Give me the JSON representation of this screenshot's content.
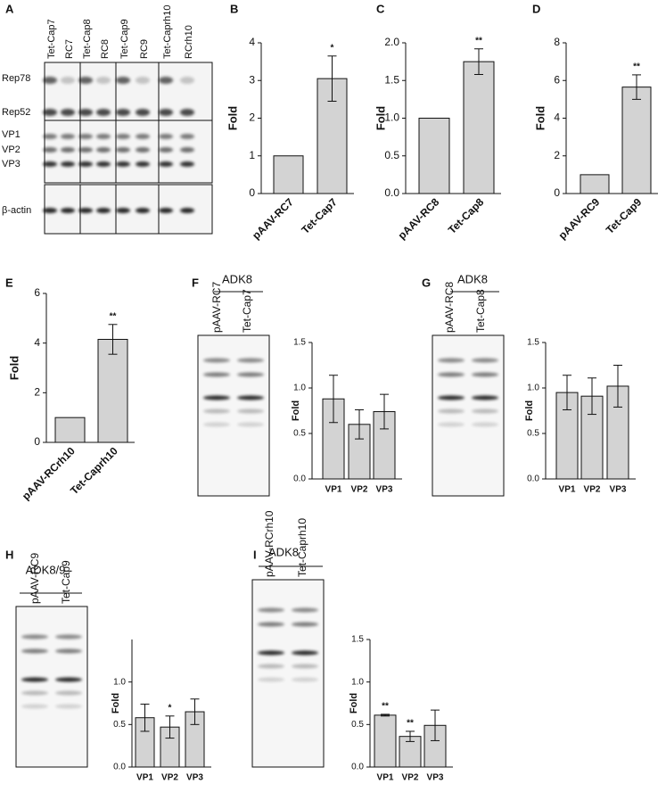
{
  "panel_a": {
    "letter": "A",
    "lanes": [
      "Tet-Cap7",
      "RC7",
      "Tet-Cap8",
      "RC8",
      "Tet-Cap9",
      "RC9",
      "Tet-Caprh10",
      "RCrh10"
    ],
    "rows": [
      "Rep78",
      "Rep52",
      "VP1",
      "VP2",
      "VP3",
      "β-actin"
    ]
  },
  "blots": [
    {
      "letter": "F",
      "header": "ADK8",
      "lanes": [
        "pAAV-RC7",
        "Tet-Cap7"
      ]
    },
    {
      "letter": "G",
      "header": "ADK8",
      "lanes": [
        "pAAV-RC8",
        "Tet-Cap8"
      ]
    },
    {
      "letter": "H",
      "header": "ADK8/9",
      "lanes": [
        "pAAV-RC9",
        "Tet-Cap9"
      ]
    },
    {
      "letter": "I",
      "header": "ADK8",
      "lanes": [
        "pAAV-RCrh10",
        "Tet-Caprh10"
      ]
    }
  ],
  "chart_data": [
    {
      "type": "bar",
      "letter": "B",
      "ylabel": "Fold",
      "categories": [
        "pAAV-RC7",
        "Tet-Cap7"
      ],
      "values": [
        1,
        3.05
      ],
      "errors": [
        null,
        0.6
      ],
      "annotations": [
        null,
        "*"
      ],
      "ylim": [
        0,
        4
      ],
      "yticks": [
        0,
        1,
        2,
        3,
        4
      ]
    },
    {
      "type": "bar",
      "letter": "C",
      "ylabel": "Fold",
      "categories": [
        "pAAV-RC8",
        "Tet-Cap8"
      ],
      "values": [
        1,
        1.75
      ],
      "errors": [
        null,
        0.17
      ],
      "annotations": [
        null,
        "**"
      ],
      "ylim": [
        0,
        2
      ],
      "yticks": [
        {
          "value": 0,
          "label": "0.0"
        },
        0.5,
        {
          "value": 1,
          "label": "1.0"
        },
        1.5,
        {
          "value": 2,
          "label": "2.0"
        }
      ]
    },
    {
      "type": "bar",
      "letter": "D",
      "ylabel": "Fold",
      "categories": [
        "pAAV-RC9",
        "Tet-Cap9"
      ],
      "values": [
        1,
        5.65
      ],
      "errors": [
        null,
        0.65
      ],
      "annotations": [
        null,
        "**"
      ],
      "ylim": [
        0,
        8
      ],
      "yticks": [
        0,
        2,
        4,
        6,
        8
      ]
    },
    {
      "type": "bar",
      "letter": "E",
      "ylabel": "Fold",
      "categories": [
        "pAAV-RCrh10",
        "Tet-Caprh10"
      ],
      "values": [
        1,
        4.15
      ],
      "errors": [
        null,
        0.6
      ],
      "annotations": [
        null,
        "**"
      ],
      "ylim": [
        0,
        6
      ],
      "yticks": [
        0,
        2,
        4,
        6
      ]
    },
    {
      "type": "bar",
      "ylabel": "Fold",
      "categories": [
        "VP1",
        "VP2",
        "VP3"
      ],
      "values": [
        0.88,
        0.6,
        0.74
      ],
      "errors": [
        0.26,
        0.16,
        0.19
      ],
      "ylim": [
        0,
        1.5
      ],
      "yticks": [
        {
          "value": 0,
          "label": "0.0"
        },
        0.5,
        {
          "value": 1,
          "label": "1.0"
        },
        1.5
      ]
    },
    {
      "type": "bar",
      "ylabel": "Fold",
      "categories": [
        "VP1",
        "VP2",
        "VP3"
      ],
      "values": [
        0.95,
        0.91,
        1.02
      ],
      "errors": [
        0.19,
        0.2,
        0.23
      ],
      "ylim": [
        0,
        1.5
      ],
      "yticks": [
        {
          "value": 0,
          "label": "0.0"
        },
        0.5,
        {
          "value": 1,
          "label": "1.0"
        },
        1.5
      ]
    },
    {
      "type": "bar",
      "ylabel": "Fold",
      "categories": [
        "VP1",
        "VP2",
        "VP3"
      ],
      "values": [
        0.58,
        0.47,
        0.65
      ],
      "errors": [
        0.16,
        0.13,
        0.15
      ],
      "annotations": [
        null,
        "*",
        null
      ],
      "ylim": [
        0,
        1.5
      ],
      "yticks": [
        {
          "value": 0,
          "label": "0.0"
        },
        0.5,
        {
          "value": 1,
          "label": "1.0"
        }
      ]
    },
    {
      "type": "bar",
      "ylabel": "Fold",
      "categories": [
        "VP1",
        "VP2",
        "VP3"
      ],
      "values": [
        0.61,
        0.36,
        0.49
      ],
      "errors": [
        0.01,
        0.06,
        0.18
      ],
      "annotations": [
        "**",
        "**",
        null
      ],
      "ylim": [
        0,
        1.5
      ],
      "yticks": [
        {
          "value": 0,
          "label": "0.0"
        },
        0.5,
        {
          "value": 1,
          "label": "1.0"
        },
        1.5
      ]
    }
  ]
}
